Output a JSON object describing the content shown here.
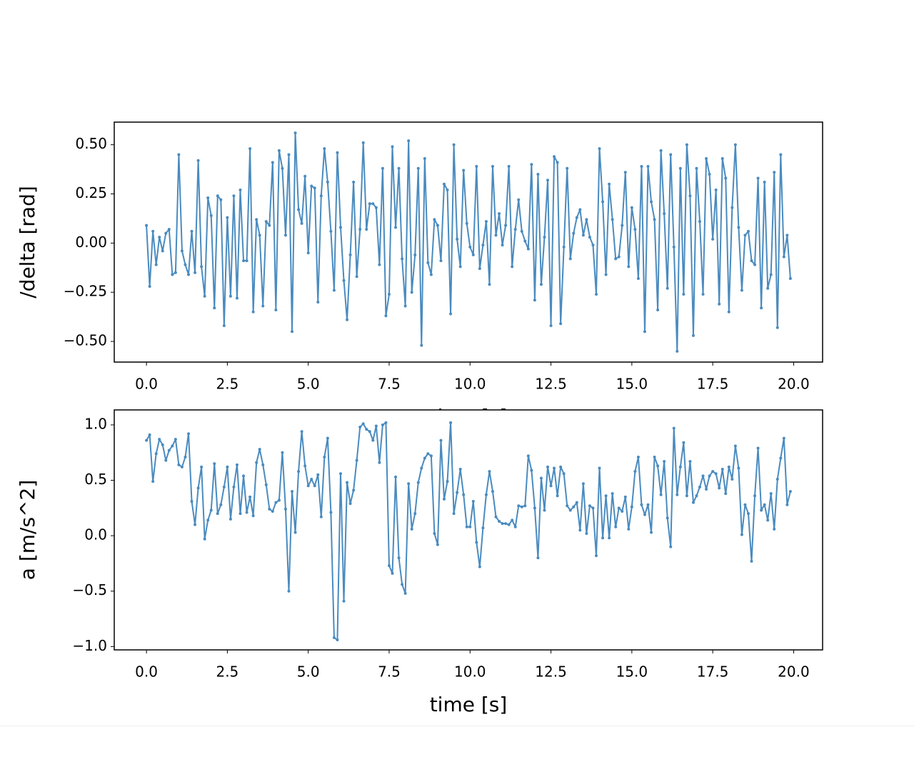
{
  "chart_data": [
    {
      "type": "line",
      "ylabel": "/delta [rad]",
      "xlabel": "time [s]",
      "color": "#4a8bbf",
      "markers": true,
      "xlim": [
        -0.995,
        20.895
      ],
      "ylim": [
        -0.605,
        0.615
      ],
      "xticks": [
        {
          "value": 0,
          "label": "0.0"
        },
        {
          "value": 2.5,
          "label": "2.5"
        },
        {
          "value": 5,
          "label": "5.0"
        },
        {
          "value": 7.5,
          "label": "7.5"
        },
        {
          "value": 10,
          "label": "10.0"
        },
        {
          "value": 12.5,
          "label": "12.5"
        },
        {
          "value": 15,
          "label": "15.0"
        },
        {
          "value": 17.5,
          "label": "17.5"
        },
        {
          "value": 20,
          "label": "20.0"
        }
      ],
      "yticks": [
        {
          "value": -0.5,
          "label": "−0.50"
        },
        {
          "value": -0.25,
          "label": "−0.25"
        },
        {
          "value": 0,
          "label": "0.00"
        },
        {
          "value": 0.25,
          "label": "0.25"
        },
        {
          "value": 0.5,
          "label": "0.50"
        }
      ],
      "x": [
        0,
        0.1,
        0.2,
        0.3,
        0.4,
        0.5,
        0.6,
        0.7,
        0.8,
        0.9,
        1,
        1.1,
        1.2,
        1.3,
        1.4,
        1.5,
        1.6,
        1.7,
        1.8,
        1.9,
        2,
        2.1,
        2.2,
        2.3,
        2.4,
        2.5,
        2.6,
        2.7,
        2.8,
        2.9,
        3,
        3.1,
        3.2,
        3.3,
        3.4,
        3.5,
        3.6,
        3.7,
        3.8,
        3.9,
        4,
        4.1,
        4.2,
        4.3,
        4.4,
        4.5,
        4.6,
        4.7,
        4.8,
        4.9,
        5,
        5.1,
        5.2,
        5.3,
        5.4,
        5.5,
        5.6,
        5.7,
        5.8,
        5.9,
        6,
        6.1,
        6.2,
        6.3,
        6.4,
        6.5,
        6.6,
        6.7,
        6.8,
        6.9,
        7,
        7.1,
        7.2,
        7.3,
        7.4,
        7.5,
        7.6,
        7.7,
        7.8,
        7.9,
        8,
        8.1,
        8.2,
        8.3,
        8.4,
        8.5,
        8.6,
        8.7,
        8.8,
        8.9,
        9,
        9.1,
        9.2,
        9.3,
        9.4,
        9.5,
        9.6,
        9.7,
        9.8,
        9.9,
        10,
        10.1,
        10.2,
        10.3,
        10.4,
        10.5,
        10.6,
        10.7,
        10.8,
        10.9,
        11,
        11.1,
        11.2,
        11.3,
        11.4,
        11.5,
        11.6,
        11.7,
        11.8,
        11.9,
        12,
        12.1,
        12.2,
        12.3,
        12.4,
        12.5,
        12.6,
        12.7,
        12.8,
        12.9,
        13,
        13.1,
        13.2,
        13.3,
        13.4,
        13.5,
        13.6,
        13.7,
        13.8,
        13.9,
        14,
        14.1,
        14.2,
        14.3,
        14.4,
        14.5,
        14.6,
        14.7,
        14.8,
        14.9,
        15,
        15.1,
        15.2,
        15.3,
        15.4,
        15.5,
        15.6,
        15.7,
        15.8,
        15.9,
        16,
        16.1,
        16.2,
        16.3,
        16.4,
        16.5,
        16.6,
        16.7,
        16.8,
        16.9,
        17,
        17.1,
        17.2,
        17.3,
        17.4,
        17.5,
        17.6,
        17.7,
        17.8,
        17.9,
        18,
        18.1,
        18.2,
        18.3,
        18.4,
        18.5,
        18.6,
        18.7,
        18.8,
        18.9,
        19,
        19.1,
        19.2,
        19.3,
        19.4,
        19.5,
        19.6,
        19.7,
        19.8,
        19.9
      ],
      "values": [
        0.09,
        -0.22,
        0.06,
        -0.11,
        0.03,
        -0.04,
        0.05,
        0.07,
        -0.16,
        -0.15,
        0.45,
        -0.04,
        -0.11,
        -0.16,
        0.06,
        -0.15,
        0.42,
        -0.12,
        -0.27,
        0.23,
        0.14,
        -0.33,
        0.24,
        0.22,
        -0.42,
        0.13,
        -0.27,
        0.24,
        -0.28,
        0.27,
        -0.09,
        -0.09,
        0.48,
        -0.35,
        0.12,
        0.04,
        -0.32,
        0.11,
        0.09,
        0.41,
        -0.34,
        0.47,
        0.38,
        0.04,
        0.45,
        -0.45,
        0.56,
        0.17,
        0.1,
        0.34,
        -0.05,
        0.29,
        0.28,
        -0.3,
        0.24,
        0.48,
        0.31,
        0.06,
        -0.24,
        0.46,
        0.08,
        -0.19,
        -0.39,
        -0.06,
        0.31,
        -0.17,
        0.07,
        0.51,
        0.07,
        0.2,
        0.2,
        0.18,
        -0.11,
        0.38,
        -0.37,
        -0.26,
        0.49,
        0.08,
        0.38,
        -0.08,
        -0.32,
        0.52,
        -0.25,
        -0.06,
        0.38,
        -0.52,
        0.43,
        -0.1,
        -0.16,
        0.12,
        0.09,
        -0.09,
        0.3,
        0.27,
        -0.36,
        0.5,
        0.02,
        -0.12,
        0.37,
        0.1,
        -0.02,
        -0.06,
        0.39,
        -0.13,
        -0.01,
        0.11,
        -0.21,
        0.39,
        0.04,
        0.15,
        -0.01,
        0.09,
        0.39,
        -0.12,
        0.07,
        0.22,
        0.06,
        0.01,
        -0.03,
        0.4,
        -0.29,
        0.35,
        -0.21,
        0.03,
        0.32,
        -0.42,
        0.44,
        0.41,
        -0.41,
        -0.02,
        0.38,
        -0.08,
        0.05,
        0.13,
        0.17,
        0.04,
        0.12,
        0.03,
        -0.01,
        -0.26,
        0.48,
        0.21,
        -0.16,
        0.3,
        0.12,
        -0.08,
        -0.07,
        0.09,
        0.36,
        -0.12,
        0.18,
        0.07,
        -0.18,
        0.39,
        -0.45,
        0.39,
        0.21,
        0.12,
        -0.34,
        0.47,
        0.15,
        -0.23,
        0.45,
        -0.02,
        -0.55,
        0.38,
        -0.26,
        0.5,
        0.24,
        -0.47,
        0.38,
        0.11,
        -0.26,
        0.43,
        0.35,
        0.02,
        0.27,
        -0.31,
        0.43,
        0.33,
        -0.35,
        0.18,
        0.5,
        0.08,
        -0.24,
        0.04,
        0.06,
        -0.09,
        -0.11,
        0.33,
        -0.33,
        0.31,
        -0.23,
        -0.16,
        0.36,
        -0.43,
        0.45,
        -0.07,
        0.04,
        -0.18
      ]
    },
    {
      "type": "line",
      "ylabel": "a [m/s^2]",
      "xlabel": "time [s]",
      "color": "#4a8bbf",
      "markers": true,
      "xlim": [
        -0.995,
        20.895
      ],
      "ylim": [
        -1.03,
        1.135
      ],
      "xticks": [
        {
          "value": 0,
          "label": "0.0"
        },
        {
          "value": 2.5,
          "label": "2.5"
        },
        {
          "value": 5,
          "label": "5.0"
        },
        {
          "value": 7.5,
          "label": "7.5"
        },
        {
          "value": 10,
          "label": "10.0"
        },
        {
          "value": 12.5,
          "label": "12.5"
        },
        {
          "value": 15,
          "label": "15.0"
        },
        {
          "value": 17.5,
          "label": "17.5"
        },
        {
          "value": 20,
          "label": "20.0"
        }
      ],
      "yticks": [
        {
          "value": -1,
          "label": "−1.0"
        },
        {
          "value": -0.5,
          "label": "−0.5"
        },
        {
          "value": 0,
          "label": "0.0"
        },
        {
          "value": 0.5,
          "label": "0.5"
        },
        {
          "value": 1,
          "label": "1.0"
        }
      ],
      "x": [
        0,
        0.1,
        0.2,
        0.3,
        0.4,
        0.5,
        0.6,
        0.7,
        0.8,
        0.9,
        1,
        1.1,
        1.2,
        1.3,
        1.4,
        1.5,
        1.6,
        1.7,
        1.8,
        1.9,
        2,
        2.1,
        2.2,
        2.3,
        2.4,
        2.5,
        2.6,
        2.7,
        2.8,
        2.9,
        3,
        3.1,
        3.2,
        3.3,
        3.4,
        3.5,
        3.6,
        3.7,
        3.8,
        3.9,
        4,
        4.1,
        4.2,
        4.3,
        4.4,
        4.5,
        4.6,
        4.7,
        4.8,
        4.9,
        5,
        5.1,
        5.2,
        5.3,
        5.4,
        5.5,
        5.6,
        5.7,
        5.8,
        5.9,
        6,
        6.1,
        6.2,
        6.3,
        6.4,
        6.5,
        6.6,
        6.7,
        6.8,
        6.9,
        7,
        7.1,
        7.2,
        7.3,
        7.4,
        7.5,
        7.6,
        7.7,
        7.8,
        7.9,
        8,
        8.1,
        8.2,
        8.3,
        8.4,
        8.5,
        8.6,
        8.7,
        8.8,
        8.9,
        9,
        9.1,
        9.2,
        9.3,
        9.4,
        9.5,
        9.6,
        9.7,
        9.8,
        9.9,
        10,
        10.1,
        10.2,
        10.3,
        10.4,
        10.5,
        10.6,
        10.7,
        10.8,
        10.9,
        11,
        11.1,
        11.2,
        11.3,
        11.4,
        11.5,
        11.6,
        11.7,
        11.8,
        11.9,
        12,
        12.1,
        12.2,
        12.3,
        12.4,
        12.5,
        12.6,
        12.7,
        12.8,
        12.9,
        13,
        13.1,
        13.2,
        13.3,
        13.4,
        13.5,
        13.6,
        13.7,
        13.8,
        13.9,
        14,
        14.1,
        14.2,
        14.3,
        14.4,
        14.5,
        14.6,
        14.7,
        14.8,
        14.9,
        15,
        15.1,
        15.2,
        15.3,
        15.4,
        15.5,
        15.6,
        15.7,
        15.8,
        15.9,
        16,
        16.1,
        16.2,
        16.3,
        16.4,
        16.5,
        16.6,
        16.7,
        16.8,
        16.9,
        17,
        17.1,
        17.2,
        17.3,
        17.4,
        17.5,
        17.6,
        17.7,
        17.8,
        17.9,
        18,
        18.1,
        18.2,
        18.3,
        18.4,
        18.5,
        18.6,
        18.7,
        18.8,
        18.9,
        19,
        19.1,
        19.2,
        19.3,
        19.4,
        19.5,
        19.6,
        19.7,
        19.8,
        19.9
      ],
      "values": [
        0.86,
        0.91,
        0.49,
        0.74,
        0.87,
        0.82,
        0.68,
        0.77,
        0.81,
        0.87,
        0.64,
        0.62,
        0.71,
        0.92,
        0.31,
        0.1,
        0.43,
        0.62,
        -0.03,
        0.14,
        0.23,
        0.65,
        0.2,
        0.28,
        0.44,
        0.62,
        0.15,
        0.44,
        0.64,
        0.2,
        0.54,
        0.21,
        0.35,
        0.18,
        0.66,
        0.78,
        0.64,
        0.46,
        0.24,
        0.22,
        0.3,
        0.32,
        0.75,
        0.24,
        -0.5,
        0.4,
        0.03,
        0.58,
        0.94,
        0.63,
        0.45,
        0.51,
        0.45,
        0.55,
        0.17,
        0.71,
        0.88,
        0.21,
        -0.92,
        -0.94,
        0.56,
        -0.59,
        0.48,
        0.29,
        0.41,
        0.68,
        0.98,
        1.01,
        0.96,
        0.94,
        0.86,
        0.99,
        0.66,
        1,
        1.02,
        -0.27,
        -0.34,
        0.53,
        -0.2,
        -0.44,
        -0.52,
        0.47,
        0.06,
        0.2,
        0.48,
        0.61,
        0.7,
        0.74,
        0.72,
        0.02,
        -0.08,
        0.86,
        0.33,
        0.49,
        1.02,
        0.2,
        0.39,
        0.6,
        0.37,
        0.08,
        0.08,
        0.31,
        -0.06,
        -0.28,
        0.07,
        0.37,
        0.58,
        0.4,
        0.17,
        0.13,
        0.11,
        0.11,
        0.1,
        0.14,
        0.08,
        0.27,
        0.26,
        0.27,
        0.72,
        0.59,
        0.25,
        -0.2,
        0.52,
        0.23,
        0.62,
        0.45,
        0.61,
        0.36,
        0.62,
        0.56,
        0.27,
        0.23,
        0.26,
        0.3,
        0.05,
        0.47,
        0.02,
        0.27,
        0.25,
        -0.18,
        0.61,
        -0.02,
        0.36,
        -0.02,
        0.38,
        0.08,
        0.25,
        0.22,
        0.35,
        0.06,
        0.26,
        0.58,
        0.71,
        0.28,
        0.19,
        0.28,
        0.03,
        0.71,
        0.63,
        0.37,
        0.67,
        0.16,
        -0.1,
        0.97,
        0.37,
        0.62,
        0.84,
        0.36,
        0.67,
        0.3,
        0.36,
        0.44,
        0.54,
        0.42,
        0.54,
        0.58,
        0.56,
        0.43,
        0.6,
        0.38,
        0.62,
        0.51,
        0.81,
        0.61,
        0.01,
        0.28,
        0.2,
        -0.23,
        0.36,
        0.79,
        0.23,
        0.28,
        0.14,
        0.38,
        0.06,
        0.51,
        0.7,
        0.88,
        0.28,
        0.4
      ]
    }
  ]
}
